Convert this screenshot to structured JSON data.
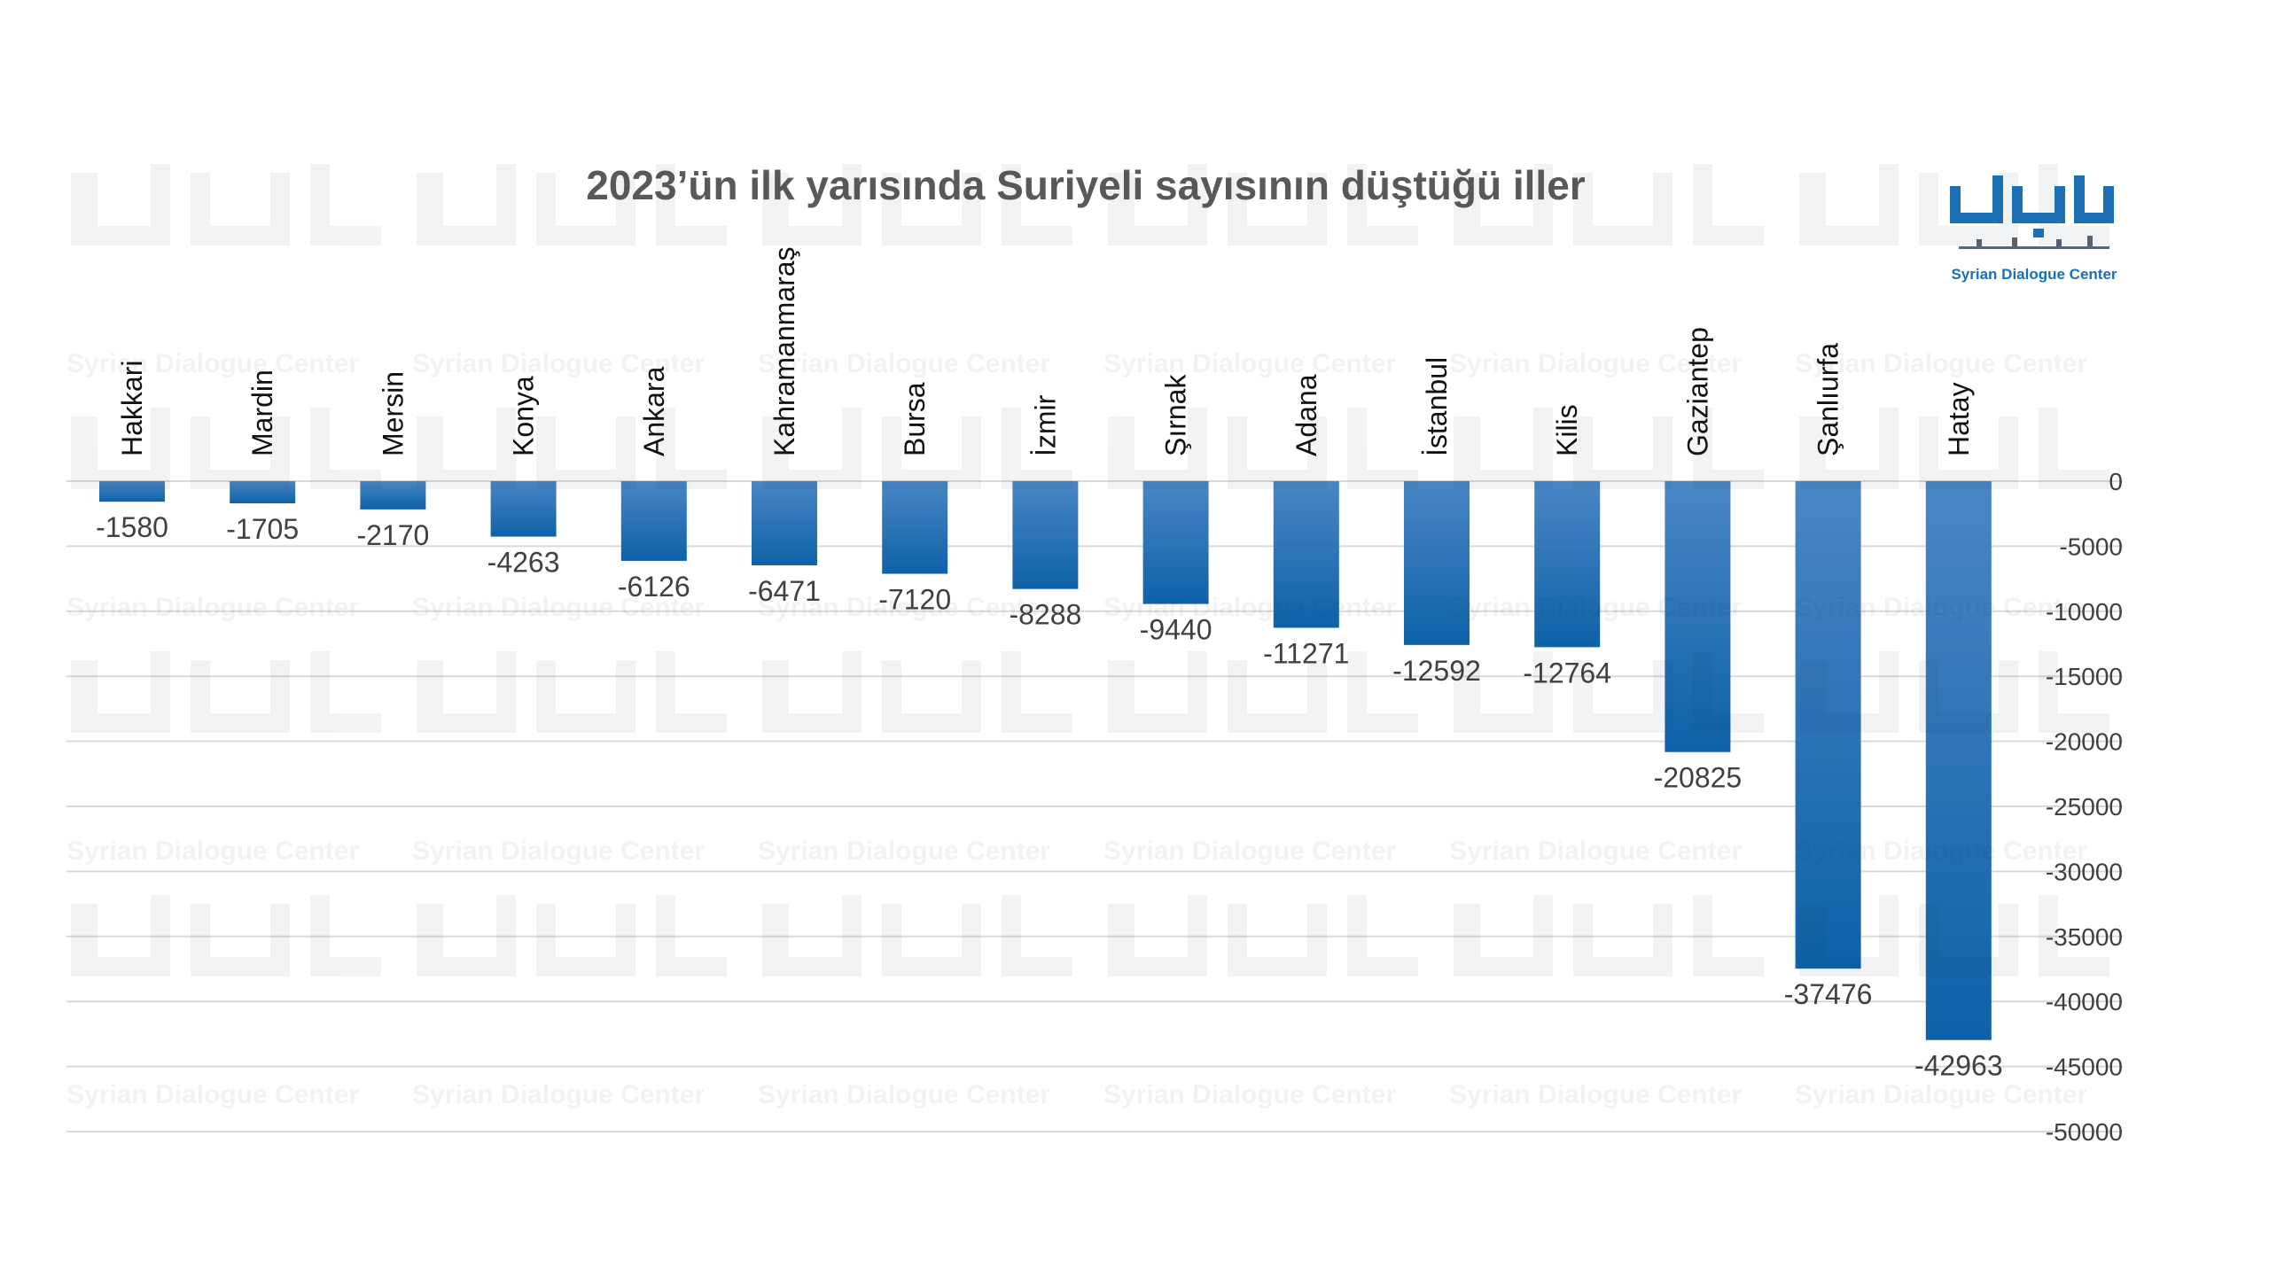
{
  "chart_data": {
    "type": "bar",
    "title": "2023’ün ilk yarısında Suriyeli sayısının düştüğü iller",
    "xlabel": "",
    "ylabel": "",
    "categories": [
      "Hakkari",
      "Mardin",
      "Mersin",
      "Konya",
      "Ankara",
      "Kahramanmaraş",
      "Bursa",
      "İzmir",
      "Şırnak",
      "Adana",
      "İstanbul",
      "Kilis",
      "Gaziantep",
      "Şanlıurfa",
      "Hatay"
    ],
    "values": [
      -1580,
      -1705,
      -2170,
      -4263,
      -6126,
      -6471,
      -7120,
      -8288,
      -9440,
      -11271,
      -12592,
      -12764,
      -20825,
      -37476,
      -42963
    ],
    "ylim": [
      -50000,
      0
    ],
    "yticks": [
      0,
      -5000,
      -10000,
      -15000,
      -20000,
      -25000,
      -30000,
      -35000,
      -40000,
      -45000,
      -50000
    ],
    "y_axis_side": "right",
    "category_labels_position": "above-zero-line-rotated",
    "grid": true,
    "bar_color_top": "#4a86c5",
    "bar_color_bottom": "#0d62a8",
    "grid_color": "#d9d9d9",
    "label_color": "#404040",
    "title_color": "#595959"
  },
  "logo": {
    "text": "Syrian Dialogue Center",
    "color": "#1a6fb5",
    "icon": "syrian-dialogue-center-logo"
  },
  "watermark": {
    "text": "Syrian Dialogue Center"
  }
}
